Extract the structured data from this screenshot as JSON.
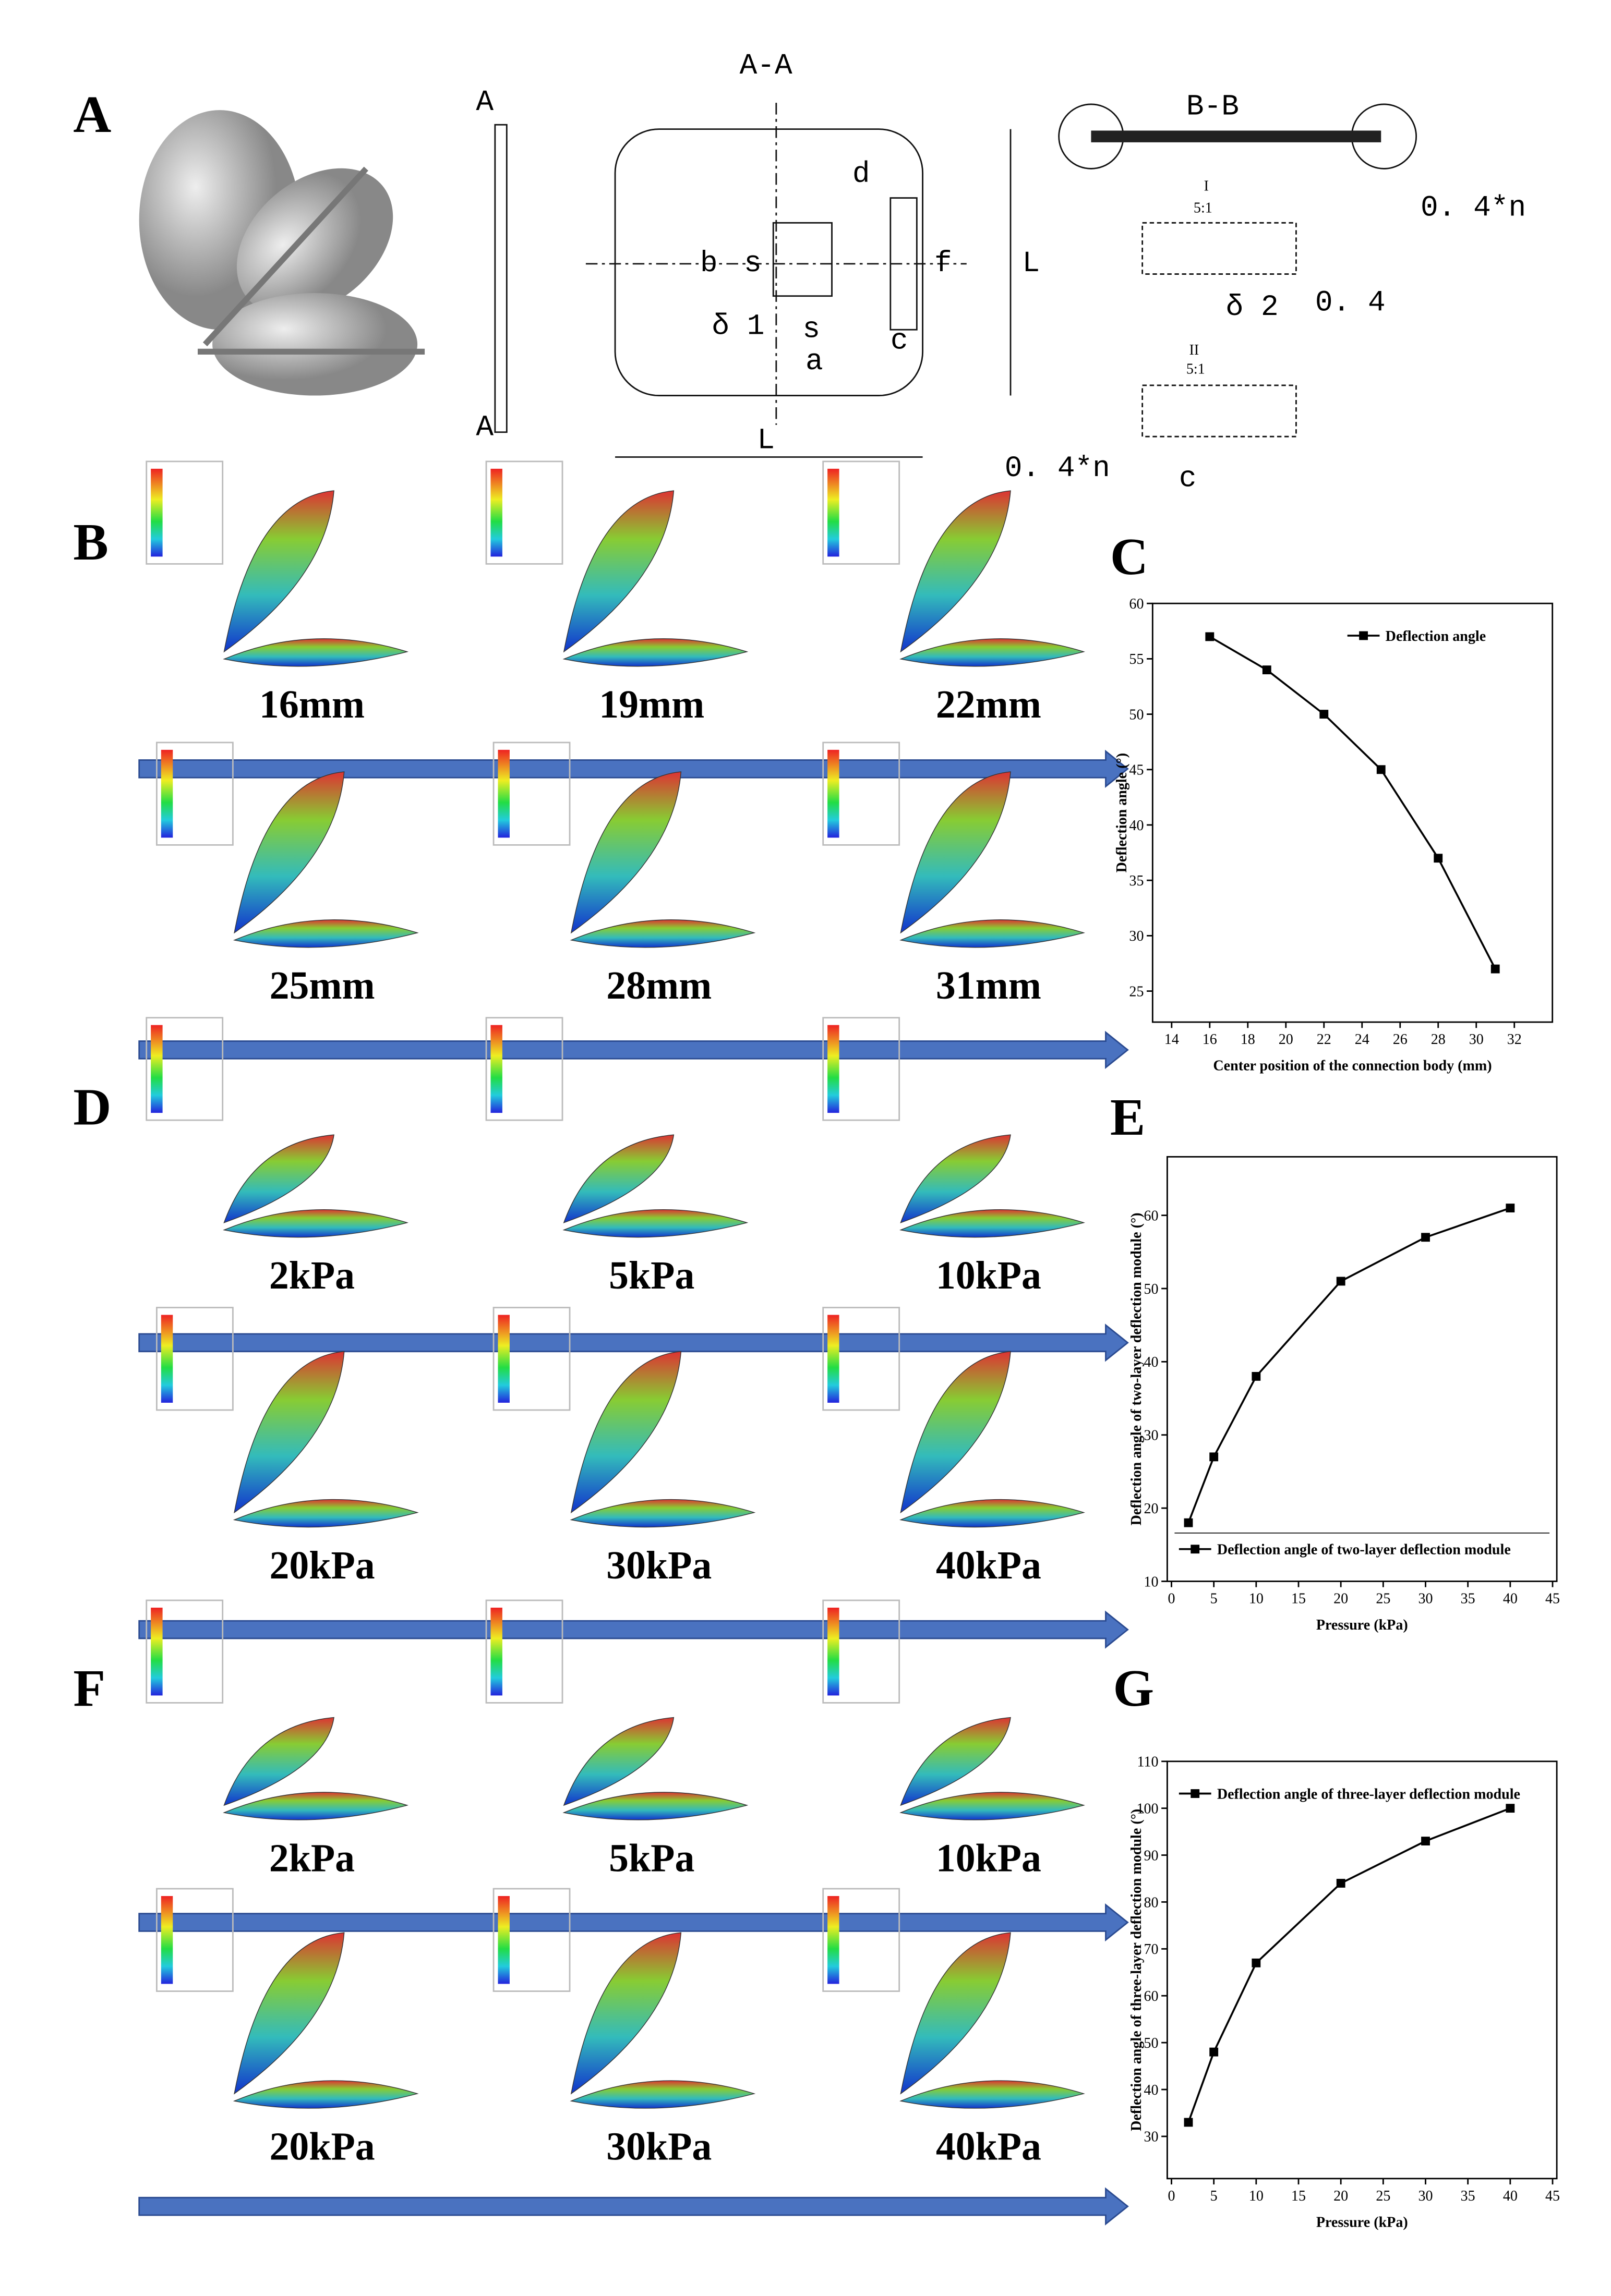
{
  "panel_labels": [
    "A",
    "B",
    "C",
    "D",
    "E",
    "F",
    "G"
  ],
  "drawing": {
    "section_a": "A-A",
    "section_b": "B-B",
    "cut_top": "A",
    "cut_bottom": "A",
    "dims": [
      "d",
      "b",
      "s",
      "f",
      "L",
      "δ 1",
      "s",
      "a",
      "c",
      "L"
    ],
    "detail_1": {
      "label": "I",
      "scale": "5:1"
    },
    "detail_2": {
      "label": "II",
      "scale": "5:1"
    },
    "detail_dims": [
      "0. 4*n",
      "δ 2",
      "0. 4",
      "0. 4*n",
      "c"
    ]
  },
  "sim_labels": {
    "B": [
      "16mm",
      "19mm",
      "22mm",
      "25mm",
      "28mm",
      "31mm"
    ],
    "D": [
      "2kPa",
      "5kPa",
      "10kPa",
      "20kPa",
      "30kPa",
      "40kPa"
    ],
    "F": [
      "2kPa",
      "5kPa",
      "10kPa",
      "20kPa",
      "30kPa",
      "40kPa"
    ]
  },
  "chart_data": [
    {
      "type": "line",
      "x_label": "Center position of the connection body (mm)",
      "y_label": "Deflection angle (°)",
      "legend": "top-right",
      "series": [
        {
          "name": "Deflection angle",
          "color": "#000000",
          "x": [
            16,
            19,
            22,
            25,
            28,
            31
          ],
          "values": [
            57,
            54,
            50,
            45,
            37,
            27
          ]
        }
      ],
      "xlim": [
        13,
        34
      ],
      "xticks": [
        14,
        16,
        18,
        20,
        22,
        24,
        26,
        28,
        30,
        32
      ],
      "ylim": [
        22.2,
        60
      ],
      "yticks": [
        25,
        30,
        35,
        40,
        45,
        50,
        55,
        60
      ]
    },
    {
      "type": "line",
      "x_label": "Pressure (kPa)",
      "y_label": "Deflection angle of two-layer deflection module (°)",
      "legend": "bottom-left",
      "series": [
        {
          "name": "Deflection angle of two-layer deflection module",
          "color": "#000000",
          "x": [
            2,
            5,
            10,
            20,
            30,
            40
          ],
          "values": [
            18,
            27,
            38,
            51,
            57,
            61
          ]
        }
      ],
      "xlim": [
        -0.5,
        45.5
      ],
      "xticks": [
        0,
        5,
        10,
        15,
        20,
        25,
        30,
        35,
        40,
        45
      ],
      "ylim": [
        10,
        68
      ],
      "yticks": [
        10,
        20,
        30,
        40,
        50,
        60
      ]
    },
    {
      "type": "line",
      "x_label": "Pressure (kPa)",
      "y_label": "Deflection angle of three-layer deflection module (°)",
      "legend": "top-left",
      "series": [
        {
          "name": "Deflection angle of three-layer deflection module",
          "color": "#000000",
          "x": [
            2,
            5,
            10,
            20,
            30,
            40
          ],
          "values": [
            33,
            48,
            67,
            84,
            93,
            100
          ]
        }
      ],
      "xlim": [
        -0.5,
        45.5
      ],
      "xticks": [
        0,
        5,
        10,
        15,
        20,
        25,
        30,
        35,
        40,
        45
      ],
      "ylim": [
        21,
        110
      ],
      "yticks": [
        30,
        40,
        50,
        60,
        70,
        80,
        90,
        100,
        110
      ]
    }
  ]
}
